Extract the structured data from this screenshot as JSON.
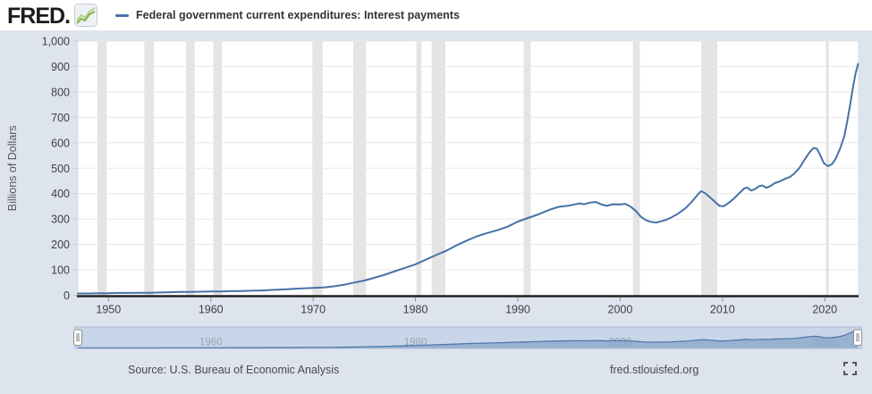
{
  "header": {
    "logo_text": "FRED",
    "logo_suffix": ".",
    "legend_label": "Federal government current expenditures: Interest payments"
  },
  "footer": {
    "source": "Source: U.S. Bureau of Economic Analysis",
    "site": "fred.stlouisfed.org"
  },
  "colors": {
    "page_bg": "#dde4ee",
    "plot_bg": "#ffffff",
    "plot_border": "#d9dde3",
    "grid": "#e7e7e7",
    "recession": "#e4e4e4",
    "axis_line": "#222222",
    "tick_mark": "#8e8e8e",
    "tick_text": "#404040",
    "axis_title_text": "#555555",
    "series": "#4572a7",
    "slider_band": "#c9d5e8",
    "slider_border": "#adbcd6",
    "slider_area_fill": "#8da8ca",
    "slider_area_line": "#4a76a8",
    "slider_label": "#98a1b3",
    "handle_fill": "#ffffff",
    "handle_border": "#8f8f8f",
    "handle_grip": "#c0c0c0",
    "footer_icon": "#555555",
    "logo_icon_green": "#86b546",
    "logo_icon_green2": "#b2cf8e",
    "logo_icon_bg": "#eef1f5",
    "logo_icon_border": "#c8cdd4"
  },
  "chart_data": {
    "type": "line",
    "title": "Federal government current expenditures: Interest payments",
    "xlabel": "",
    "ylabel": "Billions of Dollars",
    "ylim": [
      0,
      1000
    ],
    "x_range": [
      1947,
      2023.3
    ],
    "grid": true,
    "y_ticks": [
      {
        "value": 0,
        "label": "0"
      },
      {
        "value": 100,
        "label": "100"
      },
      {
        "value": 200,
        "label": "200"
      },
      {
        "value": 300,
        "label": "300"
      },
      {
        "value": 400,
        "label": "400"
      },
      {
        "value": 500,
        "label": "500"
      },
      {
        "value": 600,
        "label": "600"
      },
      {
        "value": 700,
        "label": "700"
      },
      {
        "value": 800,
        "label": "800"
      },
      {
        "value": 900,
        "label": "900"
      },
      {
        "value": 1000,
        "label": "1,000"
      }
    ],
    "x_ticks": [
      {
        "value": 1950,
        "label": "1950"
      },
      {
        "value": 1960,
        "label": "1960"
      },
      {
        "value": 1970,
        "label": "1970"
      },
      {
        "value": 1980,
        "label": "1980"
      },
      {
        "value": 1990,
        "label": "1990"
      },
      {
        "value": 2000,
        "label": "2000"
      },
      {
        "value": 2010,
        "label": "2010"
      },
      {
        "value": 2020,
        "label": "2020"
      }
    ],
    "recessions": [
      [
        1948.92,
        1949.83
      ],
      [
        1953.5,
        1954.42
      ],
      [
        1957.58,
        1958.42
      ],
      [
        1960.25,
        1961.08
      ],
      [
        1969.92,
        1970.92
      ],
      [
        1973.92,
        1975.17
      ],
      [
        1980.08,
        1980.58
      ],
      [
        1981.58,
        1982.92
      ],
      [
        1990.58,
        1991.25
      ],
      [
        2001.25,
        2001.92
      ],
      [
        2007.92,
        2009.5
      ],
      [
        2020.1,
        2020.4
      ]
    ],
    "series": [
      {
        "name": "Federal government current expenditures: Interest payments",
        "units": "Billions of Dollars",
        "points": [
          [
            1947,
            7
          ],
          [
            1948,
            7
          ],
          [
            1949,
            8
          ],
          [
            1950,
            8
          ],
          [
            1951,
            9
          ],
          [
            1952,
            9
          ],
          [
            1953,
            10
          ],
          [
            1954,
            10
          ],
          [
            1955,
            11
          ],
          [
            1956,
            12
          ],
          [
            1957,
            13
          ],
          [
            1958,
            13
          ],
          [
            1959,
            14
          ],
          [
            1960,
            15
          ],
          [
            1961,
            15
          ],
          [
            1962,
            16
          ],
          [
            1963,
            17
          ],
          [
            1964,
            18
          ],
          [
            1965,
            19
          ],
          [
            1966,
            21
          ],
          [
            1967,
            23
          ],
          [
            1968,
            25
          ],
          [
            1969,
            27
          ],
          [
            1970,
            29
          ],
          [
            1971,
            31
          ],
          [
            1972,
            35
          ],
          [
            1973,
            41
          ],
          [
            1974,
            50
          ],
          [
            1975,
            58
          ],
          [
            1976,
            69
          ],
          [
            1977,
            81
          ],
          [
            1978,
            95
          ],
          [
            1979,
            108
          ],
          [
            1980,
            122
          ],
          [
            1981,
            140
          ],
          [
            1982,
            158
          ],
          [
            1983,
            175
          ],
          [
            1984,
            196
          ],
          [
            1985,
            215
          ],
          [
            1986,
            232
          ],
          [
            1987,
            245
          ],
          [
            1988,
            256
          ],
          [
            1989,
            270
          ],
          [
            1990,
            290
          ],
          [
            1991,
            304
          ],
          [
            1992,
            318
          ],
          [
            1993,
            335
          ],
          [
            1994,
            348
          ],
          [
            1995,
            353
          ],
          [
            1996,
            361
          ],
          [
            1996.5,
            358
          ],
          [
            1997,
            364
          ],
          [
            1997.6,
            367
          ],
          [
            1998.2,
            357
          ],
          [
            1998.7,
            352
          ],
          [
            1999.3,
            358
          ],
          [
            2000,
            357
          ],
          [
            2000.5,
            360
          ],
          [
            2001,
            349
          ],
          [
            2001.5,
            333
          ],
          [
            2002,
            310
          ],
          [
            2002.5,
            296
          ],
          [
            2003,
            289
          ],
          [
            2003.5,
            286
          ],
          [
            2004,
            291
          ],
          [
            2004.5,
            297
          ],
          [
            2005,
            306
          ],
          [
            2005.5,
            317
          ],
          [
            2006,
            331
          ],
          [
            2006.5,
            347
          ],
          [
            2007,
            368
          ],
          [
            2007.5,
            392
          ],
          [
            2007.9,
            410
          ],
          [
            2008.3,
            402
          ],
          [
            2008.7,
            388
          ],
          [
            2009.2,
            370
          ],
          [
            2009.7,
            352
          ],
          [
            2010.1,
            350
          ],
          [
            2010.6,
            363
          ],
          [
            2011.1,
            380
          ],
          [
            2011.6,
            400
          ],
          [
            2012.1,
            420
          ],
          [
            2012.4,
            424
          ],
          [
            2012.8,
            412
          ],
          [
            2013.2,
            418
          ],
          [
            2013.6,
            430
          ],
          [
            2013.9,
            432
          ],
          [
            2014.3,
            423
          ],
          [
            2014.7,
            430
          ],
          [
            2015.1,
            441
          ],
          [
            2015.6,
            448
          ],
          [
            2016.1,
            458
          ],
          [
            2016.6,
            466
          ],
          [
            2017,
            478
          ],
          [
            2017.5,
            500
          ],
          [
            2018,
            532
          ],
          [
            2018.5,
            562
          ],
          [
            2018.9,
            580
          ],
          [
            2019.2,
            577
          ],
          [
            2019.5,
            556
          ],
          [
            2019.9,
            520
          ],
          [
            2020.3,
            508
          ],
          [
            2020.7,
            516
          ],
          [
            2021.1,
            540
          ],
          [
            2021.5,
            578
          ],
          [
            2021.9,
            625
          ],
          [
            2022.2,
            685
          ],
          [
            2022.5,
            755
          ],
          [
            2022.8,
            830
          ],
          [
            2023.0,
            872
          ],
          [
            2023.25,
            910
          ]
        ]
      }
    ],
    "slider": {
      "labels": [
        {
          "value": 1960,
          "label": "1960"
        },
        {
          "value": 1980,
          "label": "1980"
        },
        {
          "value": 2000,
          "label": "2000"
        },
        {
          "value": 2020,
          "label": "2020"
        }
      ],
      "range_start": 1947,
      "range_end": 2023.3
    }
  }
}
